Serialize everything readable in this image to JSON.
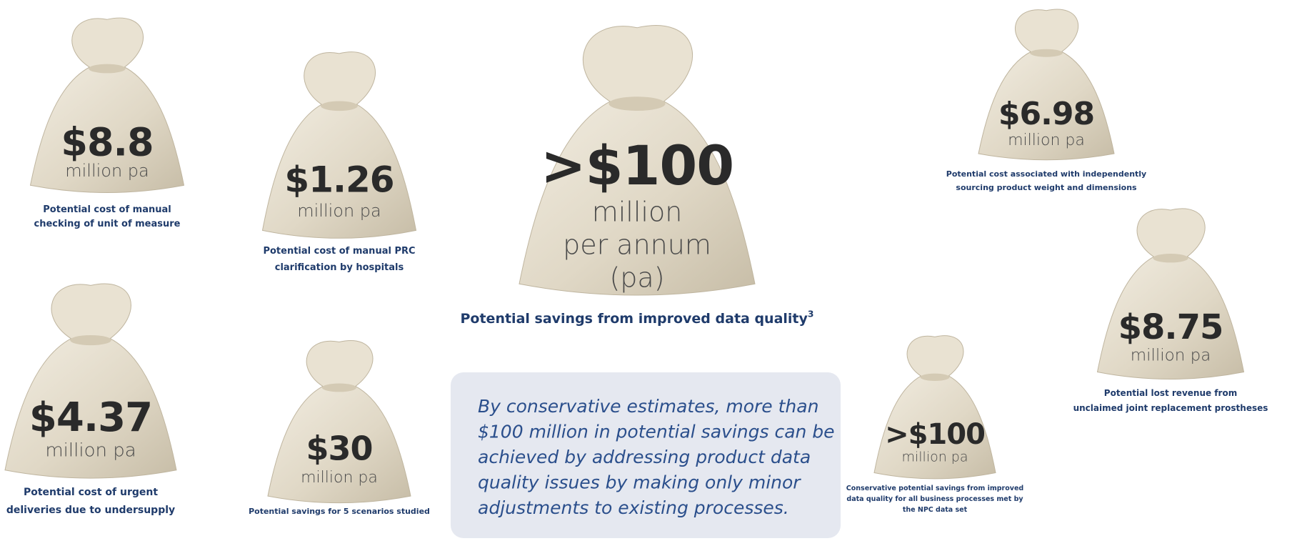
{
  "bags": [
    {
      "amount": "$8.8",
      "unit": [
        "million pa"
      ],
      "caption": [
        "Potential cost of manual",
        "checking of unit of measure"
      ]
    },
    {
      "amount": "$1.26",
      "unit": [
        "million pa"
      ],
      "caption": [
        "Potential cost of manual PRC",
        "clarification by hospitals"
      ]
    },
    {
      "amount": ">$100",
      "unit": [
        "million",
        "per annum",
        "(pa)"
      ],
      "caption": [
        "Potential savings from improved data quality"
      ],
      "caption_note": "3"
    },
    {
      "amount": "$6.98",
      "unit": [
        "million pa"
      ],
      "caption": [
        "Potential cost associated with independently",
        "sourcing product weight and dimensions"
      ]
    },
    {
      "amount": "$8.75",
      "unit": [
        "million pa"
      ],
      "caption": [
        "Potential lost revenue from",
        "unclaimed joint replacement prostheses"
      ]
    },
    {
      "amount": "$4.37",
      "unit": [
        "million pa"
      ],
      "caption": [
        "Potential cost of urgent",
        "deliveries due to undersupply"
      ]
    },
    {
      "amount": "$30",
      "unit": [
        "million pa"
      ],
      "caption": [
        "Potential savings for 5 scenarios studied"
      ]
    },
    {
      "amount": ">$100",
      "unit": [
        "million pa"
      ],
      "caption": [
        "Conservative potential savings from improved",
        "data quality for all business processes met by",
        "the NPC data set"
      ]
    }
  ],
  "callout": [
    "By conservative estimates, more than",
    "$100 million in potential savings can be",
    "achieved by addressing product data",
    "quality issues by making only minor",
    "adjustments to existing processes."
  ]
}
